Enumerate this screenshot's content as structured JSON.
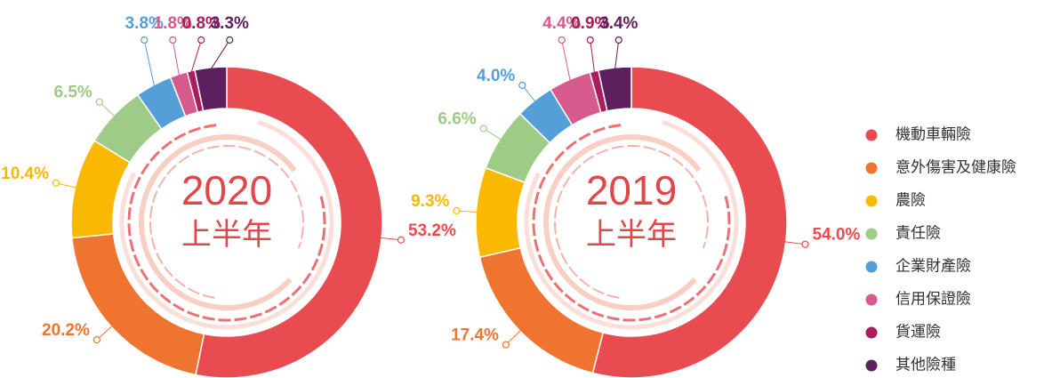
{
  "chart_data": {
    "type": "donut",
    "categories": [
      "機動車輛險",
      "意外傷害及健康險",
      "農險",
      "責任險",
      "企業財產險",
      "信用保證險",
      "貨運險",
      "其他險種"
    ],
    "colors": [
      "#e84c50",
      "#ee7430",
      "#fbb800",
      "#9ecb86",
      "#559fd8",
      "#d65a8c",
      "#a91d5c",
      "#5e1f5e"
    ],
    "series": [
      {
        "name": "2020",
        "subtitle": "上半年",
        "values": [
          53.2,
          20.2,
          10.4,
          6.5,
          3.8,
          1.8,
          0.8,
          3.3
        ],
        "value_labels": [
          "53.2%",
          "20.2%",
          "10.4%",
          "6.5%",
          "3.8%",
          "1.8%",
          "0.8%",
          "3.3%"
        ]
      },
      {
        "name": "2019",
        "subtitle": "上半年",
        "values": [
          54.0,
          17.4,
          9.3,
          6.6,
          4.0,
          4.4,
          0.9,
          3.4
        ],
        "value_labels": [
          "54.0%",
          "17.4%",
          "9.3%",
          "6.6%",
          "4.0%",
          "4.4%",
          "0.9%",
          "3.4%"
        ]
      }
    ]
  }
}
